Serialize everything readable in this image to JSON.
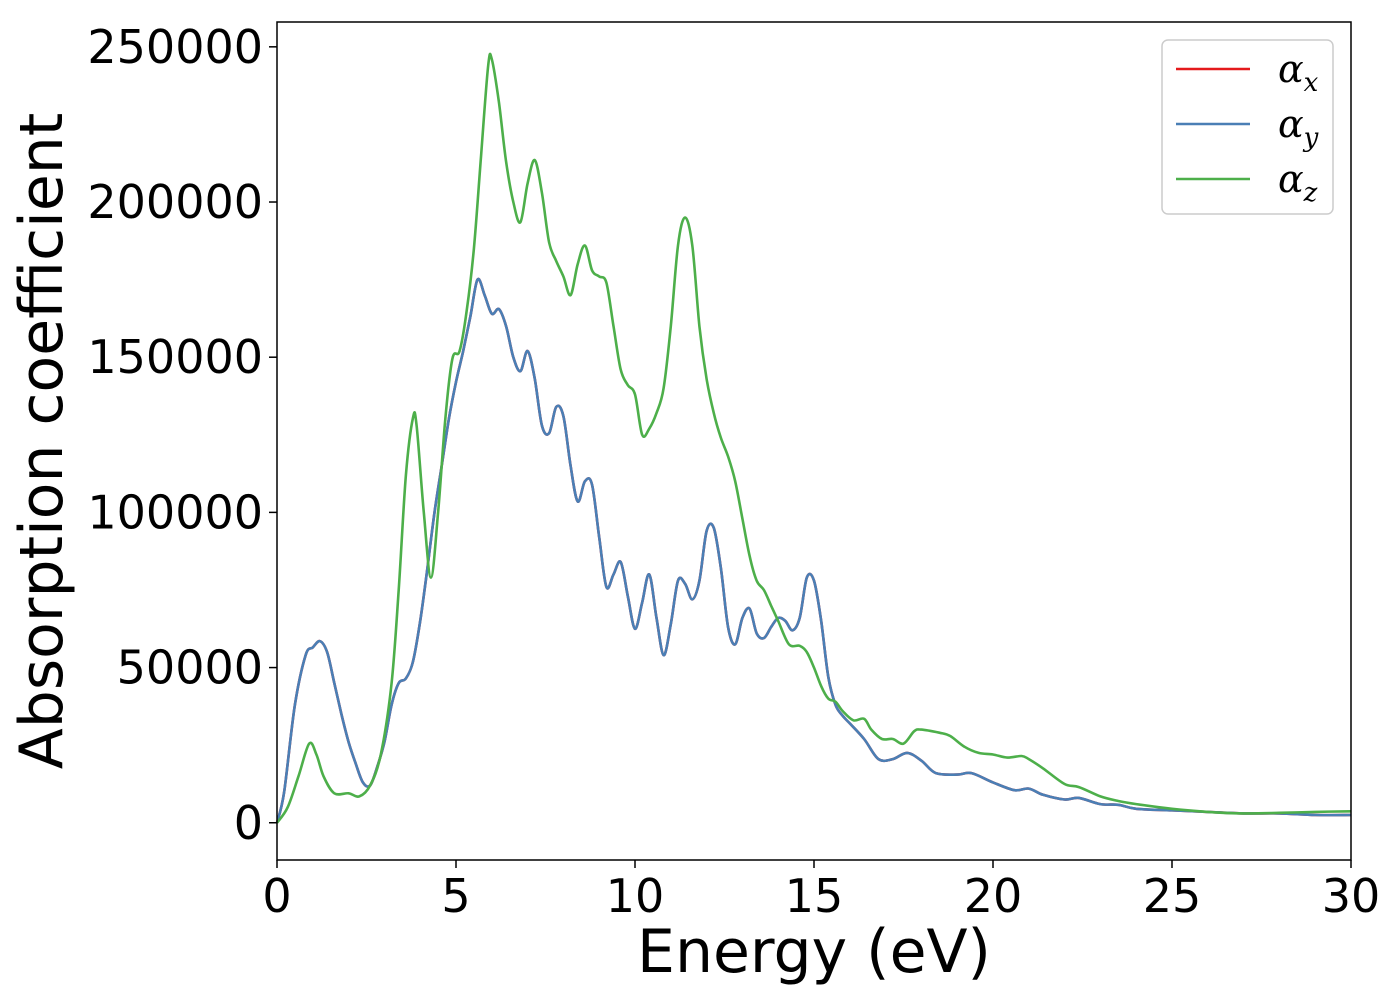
{
  "chart_data": {
    "type": "line",
    "title": "",
    "xlabel": "Energy (eV)",
    "ylabel": "Absorption coefficient",
    "xlim": [
      0,
      30
    ],
    "ylim": [
      -12000,
      258000
    ],
    "xticks": [
      "0",
      "5",
      "10",
      "15",
      "20",
      "25",
      "30"
    ],
    "xtick_values": [
      0,
      5,
      10,
      15,
      20,
      25,
      30
    ],
    "yticks": [
      "0",
      "50000",
      "100000",
      "150000",
      "200000",
      "250000"
    ],
    "ytick_values": [
      0,
      50000,
      100000,
      150000,
      200000,
      250000
    ],
    "grid": false,
    "legend_position": "top-right",
    "series": [
      {
        "name": "α",
        "subscript": "x",
        "color": "#e41a1c",
        "points": [
          [
            0,
            0
          ],
          [
            0.2,
            10000
          ],
          [
            0.5,
            38000
          ],
          [
            0.8,
            54000
          ],
          [
            1.0,
            56500
          ],
          [
            1.2,
            58500
          ],
          [
            1.4,
            55000
          ],
          [
            1.6,
            45000
          ],
          [
            1.8,
            35000
          ],
          [
            2.0,
            26000
          ],
          [
            2.2,
            19000
          ],
          [
            2.4,
            13000
          ],
          [
            2.6,
            12000
          ],
          [
            2.8,
            18000
          ],
          [
            3.0,
            26000
          ],
          [
            3.2,
            38000
          ],
          [
            3.4,
            45000
          ],
          [
            3.6,
            46500
          ],
          [
            3.8,
            52000
          ],
          [
            4.0,
            65000
          ],
          [
            4.2,
            82000
          ],
          [
            4.4,
            100000
          ],
          [
            4.6,
            115000
          ],
          [
            4.8,
            130000
          ],
          [
            5.0,
            142000
          ],
          [
            5.2,
            152000
          ],
          [
            5.4,
            163000
          ],
          [
            5.6,
            175000
          ],
          [
            5.8,
            170000
          ],
          [
            6.0,
            164000
          ],
          [
            6.2,
            165500
          ],
          [
            6.4,
            160000
          ],
          [
            6.6,
            150000
          ],
          [
            6.8,
            145500
          ],
          [
            7.0,
            152000
          ],
          [
            7.2,
            143000
          ],
          [
            7.4,
            128000
          ],
          [
            7.6,
            125500
          ],
          [
            7.8,
            134000
          ],
          [
            8.0,
            131000
          ],
          [
            8.2,
            115000
          ],
          [
            8.4,
            103500
          ],
          [
            8.6,
            110000
          ],
          [
            8.8,
            109000
          ],
          [
            9.0,
            92000
          ],
          [
            9.2,
            76000
          ],
          [
            9.4,
            80000
          ],
          [
            9.6,
            84000
          ],
          [
            9.8,
            73000
          ],
          [
            10.0,
            62500
          ],
          [
            10.2,
            71000
          ],
          [
            10.4,
            80000
          ],
          [
            10.6,
            66000
          ],
          [
            10.8,
            54000
          ],
          [
            11.0,
            64000
          ],
          [
            11.2,
            78000
          ],
          [
            11.4,
            77000
          ],
          [
            11.6,
            72000
          ],
          [
            11.8,
            78000
          ],
          [
            12.0,
            94000
          ],
          [
            12.2,
            95000
          ],
          [
            12.4,
            82000
          ],
          [
            12.6,
            63000
          ],
          [
            12.8,
            57500
          ],
          [
            13.0,
            66000
          ],
          [
            13.2,
            69000
          ],
          [
            13.4,
            61000
          ],
          [
            13.6,
            59500
          ],
          [
            13.8,
            63000
          ],
          [
            14.0,
            66000
          ],
          [
            14.2,
            65000
          ],
          [
            14.4,
            62000
          ],
          [
            14.6,
            66000
          ],
          [
            14.8,
            79000
          ],
          [
            15.0,
            78000
          ],
          [
            15.2,
            65000
          ],
          [
            15.4,
            47000
          ],
          [
            15.6,
            38000
          ],
          [
            15.8,
            34500
          ],
          [
            16.0,
            32000
          ],
          [
            16.4,
            27000
          ],
          [
            16.8,
            20500
          ],
          [
            17.2,
            20500
          ],
          [
            17.6,
            22500
          ],
          [
            18.0,
            20000
          ],
          [
            18.4,
            16000
          ],
          [
            19.0,
            15500
          ],
          [
            19.4,
            16000
          ],
          [
            20.0,
            13000
          ],
          [
            20.6,
            10500
          ],
          [
            21.0,
            11000
          ],
          [
            21.4,
            9000
          ],
          [
            22.0,
            7500
          ],
          [
            22.4,
            8000
          ],
          [
            23.0,
            6000
          ],
          [
            23.5,
            5800
          ],
          [
            24.0,
            4500
          ],
          [
            25.0,
            4000
          ],
          [
            26.0,
            3500
          ],
          [
            27.0,
            3000
          ],
          [
            28.0,
            3000
          ],
          [
            29.0,
            2500
          ],
          [
            30.0,
            2500
          ]
        ]
      },
      {
        "name": "α",
        "subscript": "y",
        "color": "#4a7fb5",
        "points": [
          [
            0,
            0
          ],
          [
            0.2,
            10000
          ],
          [
            0.5,
            38000
          ],
          [
            0.8,
            54000
          ],
          [
            1.0,
            56500
          ],
          [
            1.2,
            58500
          ],
          [
            1.4,
            55000
          ],
          [
            1.6,
            45000
          ],
          [
            1.8,
            35000
          ],
          [
            2.0,
            26000
          ],
          [
            2.2,
            19000
          ],
          [
            2.4,
            13000
          ],
          [
            2.6,
            12000
          ],
          [
            2.8,
            18000
          ],
          [
            3.0,
            26000
          ],
          [
            3.2,
            38000
          ],
          [
            3.4,
            45000
          ],
          [
            3.6,
            46500
          ],
          [
            3.8,
            52000
          ],
          [
            4.0,
            65000
          ],
          [
            4.2,
            82000
          ],
          [
            4.4,
            100000
          ],
          [
            4.6,
            115000
          ],
          [
            4.8,
            130000
          ],
          [
            5.0,
            142000
          ],
          [
            5.2,
            152000
          ],
          [
            5.4,
            163000
          ],
          [
            5.6,
            175000
          ],
          [
            5.8,
            170000
          ],
          [
            6.0,
            164000
          ],
          [
            6.2,
            165500
          ],
          [
            6.4,
            160000
          ],
          [
            6.6,
            150000
          ],
          [
            6.8,
            145500
          ],
          [
            7.0,
            152000
          ],
          [
            7.2,
            143000
          ],
          [
            7.4,
            128000
          ],
          [
            7.6,
            125500
          ],
          [
            7.8,
            134000
          ],
          [
            8.0,
            131000
          ],
          [
            8.2,
            115000
          ],
          [
            8.4,
            103500
          ],
          [
            8.6,
            110000
          ],
          [
            8.8,
            109000
          ],
          [
            9.0,
            92000
          ],
          [
            9.2,
            76000
          ],
          [
            9.4,
            80000
          ],
          [
            9.6,
            84000
          ],
          [
            9.8,
            73000
          ],
          [
            10.0,
            62500
          ],
          [
            10.2,
            71000
          ],
          [
            10.4,
            80000
          ],
          [
            10.6,
            66000
          ],
          [
            10.8,
            54000
          ],
          [
            11.0,
            64000
          ],
          [
            11.2,
            78000
          ],
          [
            11.4,
            77000
          ],
          [
            11.6,
            72000
          ],
          [
            11.8,
            78000
          ],
          [
            12.0,
            94000
          ],
          [
            12.2,
            95000
          ],
          [
            12.4,
            82000
          ],
          [
            12.6,
            63000
          ],
          [
            12.8,
            57500
          ],
          [
            13.0,
            66000
          ],
          [
            13.2,
            69000
          ],
          [
            13.4,
            61000
          ],
          [
            13.6,
            59500
          ],
          [
            13.8,
            63000
          ],
          [
            14.0,
            66000
          ],
          [
            14.2,
            65000
          ],
          [
            14.4,
            62000
          ],
          [
            14.6,
            66000
          ],
          [
            14.8,
            79000
          ],
          [
            15.0,
            78000
          ],
          [
            15.2,
            65000
          ],
          [
            15.4,
            47000
          ],
          [
            15.6,
            38000
          ],
          [
            15.8,
            34500
          ],
          [
            16.0,
            32000
          ],
          [
            16.4,
            27000
          ],
          [
            16.8,
            20500
          ],
          [
            17.2,
            20500
          ],
          [
            17.6,
            22500
          ],
          [
            18.0,
            20000
          ],
          [
            18.4,
            16000
          ],
          [
            19.0,
            15500
          ],
          [
            19.4,
            16000
          ],
          [
            20.0,
            13000
          ],
          [
            20.6,
            10500
          ],
          [
            21.0,
            11000
          ],
          [
            21.4,
            9000
          ],
          [
            22.0,
            7500
          ],
          [
            22.4,
            8000
          ],
          [
            23.0,
            6000
          ],
          [
            23.5,
            5800
          ],
          [
            24.0,
            4500
          ],
          [
            25.0,
            4000
          ],
          [
            26.0,
            3500
          ],
          [
            27.0,
            3000
          ],
          [
            28.0,
            3000
          ],
          [
            29.0,
            2500
          ],
          [
            30.0,
            2500
          ]
        ]
      },
      {
        "name": "α",
        "subscript": "z",
        "color": "#4daf4a",
        "points": [
          [
            0,
            0
          ],
          [
            0.3,
            5000
          ],
          [
            0.6,
            15000
          ],
          [
            0.9,
            25500
          ],
          [
            1.1,
            22000
          ],
          [
            1.3,
            15000
          ],
          [
            1.6,
            9500
          ],
          [
            2.0,
            9500
          ],
          [
            2.3,
            8500
          ],
          [
            2.6,
            12000
          ],
          [
            2.9,
            22000
          ],
          [
            3.2,
            45000
          ],
          [
            3.4,
            75000
          ],
          [
            3.6,
            112000
          ],
          [
            3.8,
            130500
          ],
          [
            3.9,
            128000
          ],
          [
            4.1,
            100000
          ],
          [
            4.3,
            79000
          ],
          [
            4.5,
            100000
          ],
          [
            4.7,
            130000
          ],
          [
            4.9,
            149500
          ],
          [
            5.1,
            152000
          ],
          [
            5.3,
            165000
          ],
          [
            5.5,
            185000
          ],
          [
            5.7,
            215000
          ],
          [
            5.9,
            244000
          ],
          [
            6.0,
            246000
          ],
          [
            6.2,
            232000
          ],
          [
            6.4,
            213000
          ],
          [
            6.6,
            200000
          ],
          [
            6.8,
            193500
          ],
          [
            7.0,
            206000
          ],
          [
            7.2,
            213500
          ],
          [
            7.4,
            203000
          ],
          [
            7.6,
            187000
          ],
          [
            7.8,
            181000
          ],
          [
            8.0,
            176000
          ],
          [
            8.2,
            170000
          ],
          [
            8.4,
            180000
          ],
          [
            8.6,
            186000
          ],
          [
            8.8,
            178000
          ],
          [
            9.0,
            176000
          ],
          [
            9.2,
            174000
          ],
          [
            9.4,
            160000
          ],
          [
            9.6,
            146000
          ],
          [
            9.8,
            141000
          ],
          [
            10.0,
            138000
          ],
          [
            10.2,
            125000
          ],
          [
            10.4,
            127000
          ],
          [
            10.6,
            132000
          ],
          [
            10.8,
            140000
          ],
          [
            11.0,
            160000
          ],
          [
            11.2,
            186000
          ],
          [
            11.4,
            195000
          ],
          [
            11.6,
            186000
          ],
          [
            11.8,
            160000
          ],
          [
            12.0,
            143000
          ],
          [
            12.2,
            132000
          ],
          [
            12.4,
            124000
          ],
          [
            12.6,
            118000
          ],
          [
            12.8,
            110000
          ],
          [
            13.0,
            98000
          ],
          [
            13.2,
            86000
          ],
          [
            13.4,
            78000
          ],
          [
            13.6,
            75000
          ],
          [
            13.8,
            70000
          ],
          [
            14.0,
            65000
          ],
          [
            14.3,
            57500
          ],
          [
            14.6,
            57000
          ],
          [
            14.8,
            55000
          ],
          [
            15.0,
            50000
          ],
          [
            15.2,
            44000
          ],
          [
            15.4,
            40000
          ],
          [
            15.6,
            39000
          ],
          [
            15.8,
            36000
          ],
          [
            16.1,
            33000
          ],
          [
            16.4,
            33500
          ],
          [
            16.6,
            30000
          ],
          [
            16.9,
            27000
          ],
          [
            17.2,
            27000
          ],
          [
            17.5,
            25500
          ],
          [
            17.8,
            29500
          ],
          [
            18.0,
            30000
          ],
          [
            18.5,
            29000
          ],
          [
            18.8,
            28000
          ],
          [
            19.2,
            24500
          ],
          [
            19.6,
            22500
          ],
          [
            20.0,
            22000
          ],
          [
            20.4,
            21000
          ],
          [
            20.8,
            21500
          ],
          [
            21.0,
            20500
          ],
          [
            21.4,
            17500
          ],
          [
            22.0,
            12500
          ],
          [
            22.4,
            11500
          ],
          [
            23.0,
            8500
          ],
          [
            23.5,
            7000
          ],
          [
            24.0,
            6000
          ],
          [
            25.0,
            4500
          ],
          [
            26.0,
            3500
          ],
          [
            27.0,
            3000
          ],
          [
            28.0,
            3200
          ],
          [
            29.0,
            3500
          ],
          [
            30.0,
            3700
          ]
        ]
      }
    ]
  }
}
